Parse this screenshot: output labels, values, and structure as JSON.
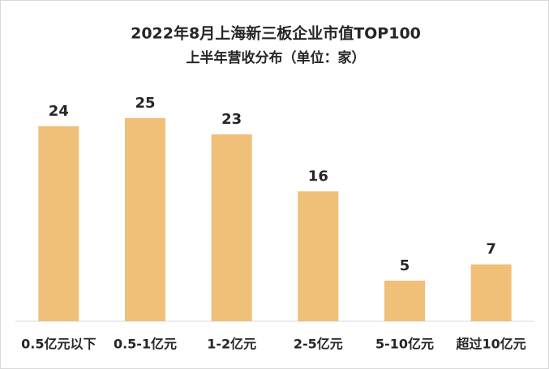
{
  "chart_data": {
    "type": "bar",
    "title": "2022年8月上海新三板企业市值TOP100",
    "subtitle": "上半年营收分布（单位：家）",
    "categories": [
      "0.5亿元以下",
      "0.5-1亿元",
      "1-2亿元",
      "2-5亿元",
      "5-10亿元",
      "超过10亿元"
    ],
    "values": [
      24,
      25,
      23,
      16,
      5,
      7
    ],
    "color": "#f0bf78"
  }
}
